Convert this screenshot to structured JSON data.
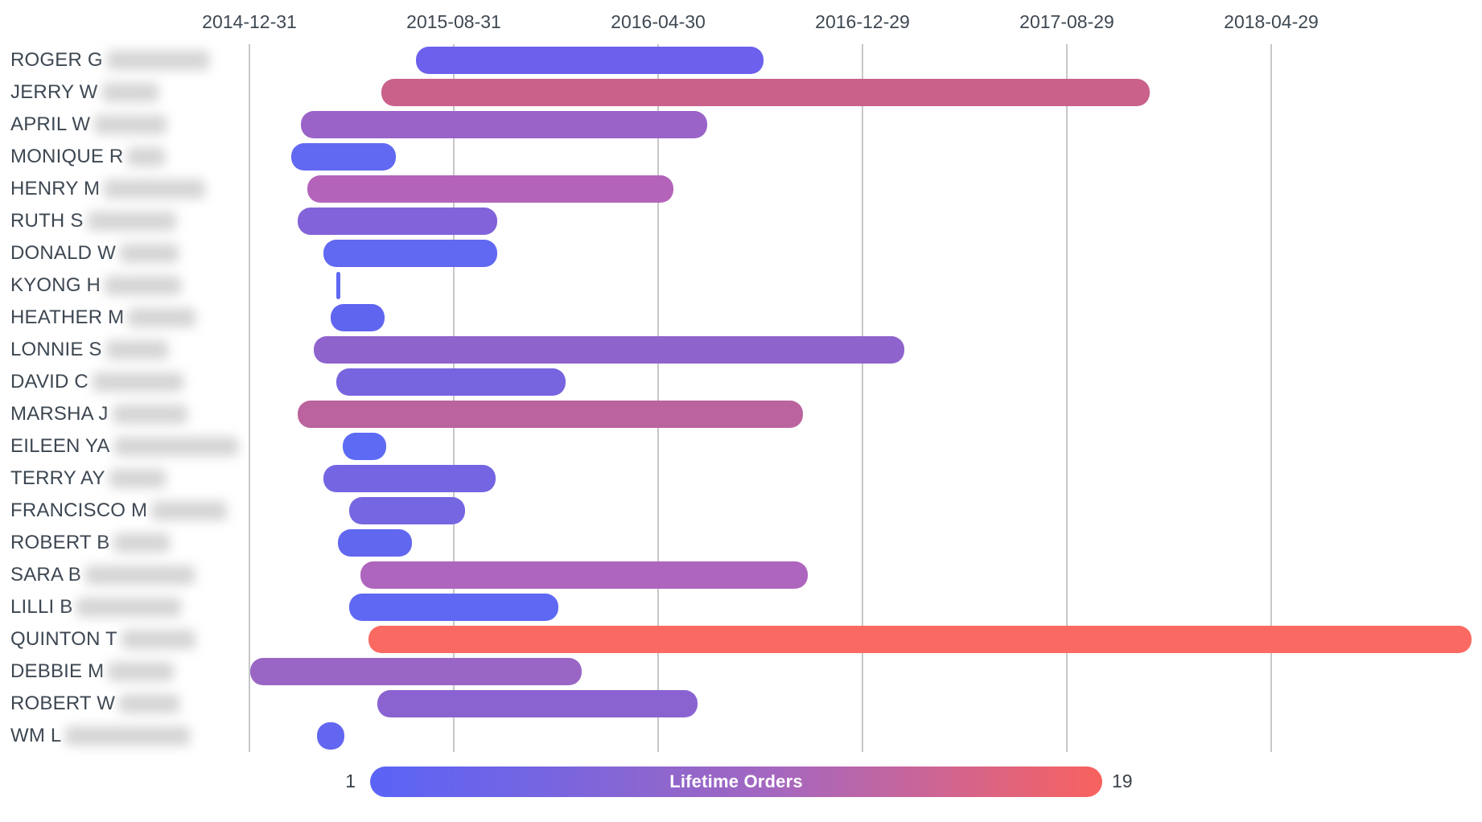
{
  "legend": {
    "title": "Lifetime Orders",
    "min_label": "1",
    "max_label": "19",
    "gradient": [
      "#5a63f6",
      "#7465e3",
      "#9166cb",
      "#a467c0",
      "#cb6597",
      "#f8625e"
    ]
  },
  "chart_data": {
    "type": "gantt",
    "title": "",
    "xlabel": "",
    "ylabel": "",
    "grid": "vertical-only",
    "x_axis": {
      "ticks": [
        "2014-12-31",
        "2015-08-31",
        "2016-04-30",
        "2016-12-29",
        "2017-08-29",
        "2018-04-29"
      ],
      "interval_days": 243
    },
    "color_scale": {
      "label": "Lifetime Orders",
      "min": 1,
      "max": 19,
      "min_color": "#5a63f6",
      "max_color": "#f8625e"
    },
    "customers": [
      {
        "label": "ROGER G",
        "blur_width": 127,
        "start": "2015-07-17",
        "end": "2016-09-02",
        "color": "#6c60ec",
        "orders_estimate": 3
      },
      {
        "label": "JERRY W",
        "blur_width": 70,
        "start": "2015-06-06",
        "end": "2017-12-06",
        "color": "#c9618b",
        "orders_estimate": 14
      },
      {
        "label": "APRIL W",
        "blur_width": 90,
        "start": "2015-03-02",
        "end": "2016-06-27",
        "color": "#9a63c8",
        "orders_estimate": 9
      },
      {
        "label": "MONIQUE R",
        "blur_width": 47,
        "start": "2015-02-19",
        "end": "2015-06-23",
        "color": "#6168f1",
        "orders_estimate": 2
      },
      {
        "label": "HENRY M",
        "blur_width": 126,
        "start": "2015-03-10",
        "end": "2016-05-18",
        "color": "#b364ba",
        "orders_estimate": 11
      },
      {
        "label": "RUTH S",
        "blur_width": 110,
        "start": "2015-02-26",
        "end": "2015-10-22",
        "color": "#8263d9",
        "orders_estimate": 6
      },
      {
        "label": "DONALD W",
        "blur_width": 73,
        "start": "2015-03-29",
        "end": "2015-10-22",
        "color": "#6168f1",
        "orders_estimate": 2
      },
      {
        "label": "KYONG H",
        "blur_width": 95,
        "start": "2015-04-13",
        "end": "2015-04-14",
        "color": "#5f68f2",
        "orders_estimate": 1
      },
      {
        "label": "HEATHER M",
        "blur_width": 84,
        "start": "2015-04-07",
        "end": "2015-06-10",
        "color": "#6065ef",
        "orders_estimate": 2
      },
      {
        "label": "LONNIE S",
        "blur_width": 77,
        "start": "2015-03-18",
        "end": "2017-02-17",
        "color": "#8f63cc",
        "orders_estimate": 8
      },
      {
        "label": "DAVID C",
        "blur_width": 113,
        "start": "2015-04-13",
        "end": "2016-01-11",
        "color": "#7765e0",
        "orders_estimate": 4
      },
      {
        "label": "MARSHA J",
        "blur_width": 93,
        "start": "2015-02-26",
        "end": "2016-10-19",
        "color": "#bb639e",
        "orders_estimate": 12
      },
      {
        "label": "EILEEN YA",
        "blur_width": 154,
        "start": "2015-04-21",
        "end": "2015-06-12",
        "color": "#5c6af4",
        "orders_estimate": 1
      },
      {
        "label": "TERRY AY",
        "blur_width": 70,
        "start": "2015-03-29",
        "end": "2015-10-20",
        "color": "#7465e2",
        "orders_estimate": 4
      },
      {
        "label": "FRANCISCO M",
        "blur_width": 94,
        "start": "2015-04-29",
        "end": "2015-09-13",
        "color": "#7566e1",
        "orders_estimate": 4
      },
      {
        "label": "ROBERT B",
        "blur_width": 70,
        "start": "2015-04-15",
        "end": "2015-07-12",
        "color": "#6267f0",
        "orders_estimate": 2
      },
      {
        "label": "SARA B",
        "blur_width": 136,
        "start": "2015-05-12",
        "end": "2016-10-25",
        "color": "#ae65bd",
        "orders_estimate": 10
      },
      {
        "label": "LILLI B",
        "blur_width": 130,
        "start": "2015-04-29",
        "end": "2016-01-02",
        "color": "#5f68f2",
        "orders_estimate": 1
      },
      {
        "label": "QUINTON T",
        "blur_width": 92,
        "start": "2015-05-22",
        "end": "2018-12-23",
        "color": "#fb6a62",
        "orders_estimate": 19
      },
      {
        "label": "DEBBIE M",
        "blur_width": 82,
        "start": "2015-01-01",
        "end": "2016-01-30",
        "color": "#9a66c5",
        "orders_estimate": 9
      },
      {
        "label": "ROBERT W",
        "blur_width": 75,
        "start": "2015-06-01",
        "end": "2016-06-16",
        "color": "#8a63d1",
        "orders_estimate": 7
      },
      {
        "label": "WM L",
        "blur_width": 155,
        "start": "2015-03-21",
        "end": "2015-04-23",
        "color": "#6366f0",
        "orders_estimate": 1
      }
    ]
  }
}
